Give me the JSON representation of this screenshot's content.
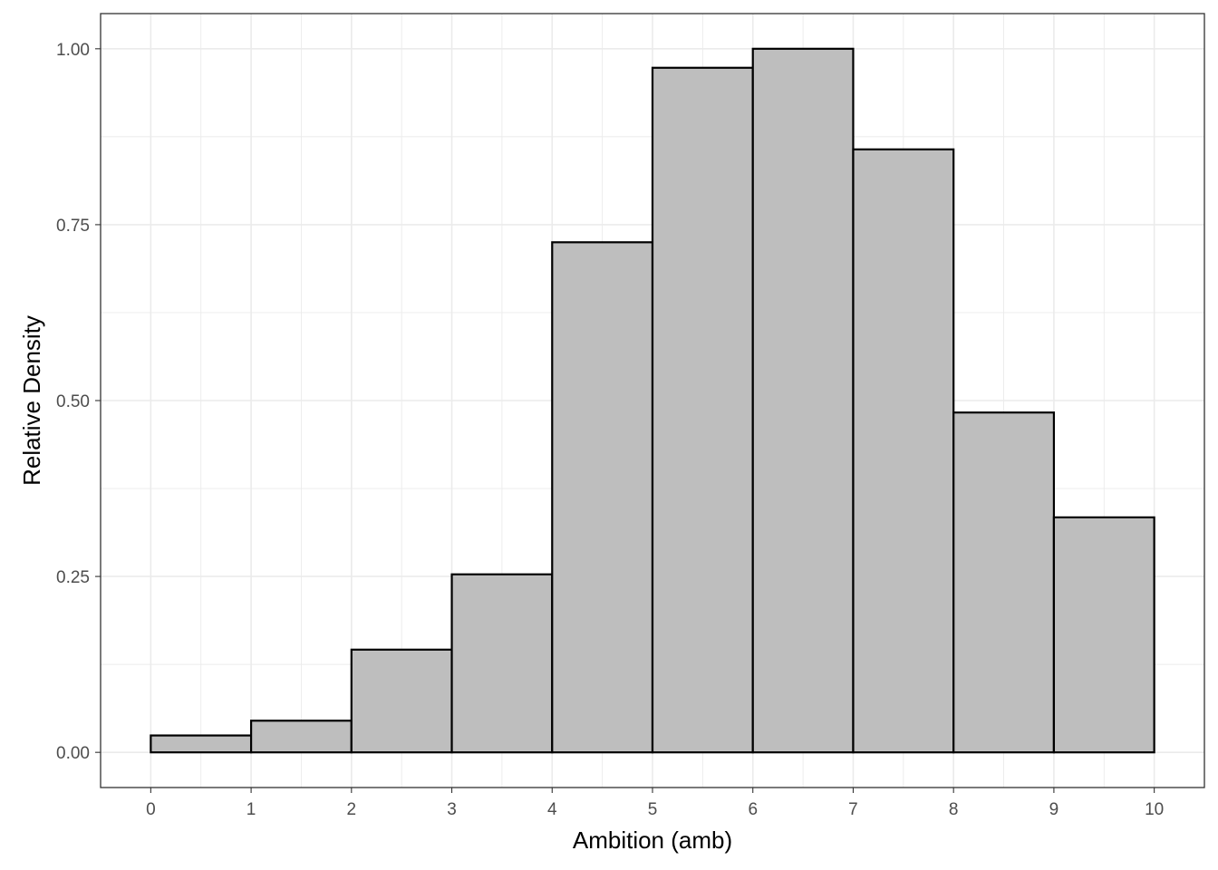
{
  "chart_data": {
    "type": "bar",
    "subtype": "histogram",
    "xlabel": "Ambition (amb)",
    "ylabel": "Relative Density",
    "xlim": [
      -0.5,
      10.5
    ],
    "ylim": [
      -0.05,
      1.05
    ],
    "x_ticks": [
      0,
      1,
      2,
      3,
      4,
      5,
      6,
      7,
      8,
      9,
      10
    ],
    "y_ticks": [
      0.0,
      0.25,
      0.5,
      0.75,
      1.0
    ],
    "y_tick_labels": [
      "0.00",
      "0.25",
      "0.50",
      "0.75",
      "1.00"
    ],
    "bins": [
      {
        "x0": 0,
        "x1": 1,
        "value": 0.024
      },
      {
        "x0": 1,
        "x1": 2,
        "value": 0.045
      },
      {
        "x0": 2,
        "x1": 3,
        "value": 0.146
      },
      {
        "x0": 3,
        "x1": 4,
        "value": 0.253
      },
      {
        "x0": 4,
        "x1": 5,
        "value": 0.725
      },
      {
        "x0": 5,
        "x1": 6,
        "value": 0.973
      },
      {
        "x0": 6,
        "x1": 7,
        "value": 1.0
      },
      {
        "x0": 7,
        "x1": 8,
        "value": 0.857
      },
      {
        "x0": 8,
        "x1": 9,
        "value": 0.483
      },
      {
        "x0": 9,
        "x1": 10,
        "value": 0.334
      }
    ],
    "grid": true,
    "theme": "bw",
    "colors": {
      "bar_fill": "#bebebe",
      "bar_outline": "#000000",
      "grid": "#ebebeb",
      "panel_border": "#333333",
      "tick_label": "#4d4d4d"
    }
  }
}
